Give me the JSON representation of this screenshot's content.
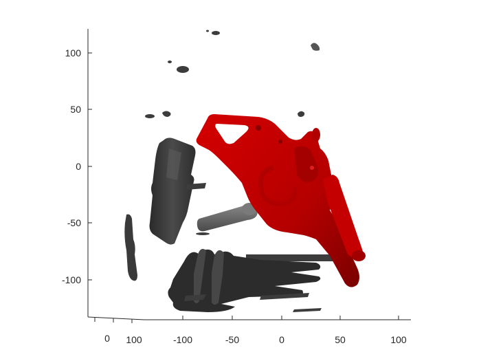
{
  "figure": {
    "vertical_axis_ticks": [
      "100",
      "50",
      "0",
      "-50",
      "-100"
    ],
    "depth_axis_ticks": [
      "0",
      "100"
    ],
    "horizontal_axis_ticks": [
      "-100",
      "-50",
      "0",
      "50",
      "100"
    ],
    "colors": {
      "revolver": "#c00000",
      "revolver_dark": "#7a0000",
      "debris": "#3c3c3c",
      "debris_light": "#6a6a6a",
      "axis": "#262626"
    },
    "objects": [
      {
        "name": "revolver",
        "color": "#c00000"
      },
      {
        "name": "bullet",
        "color": "#6a6a6a"
      },
      {
        "name": "debris",
        "color": "#3c3c3c"
      }
    ]
  }
}
